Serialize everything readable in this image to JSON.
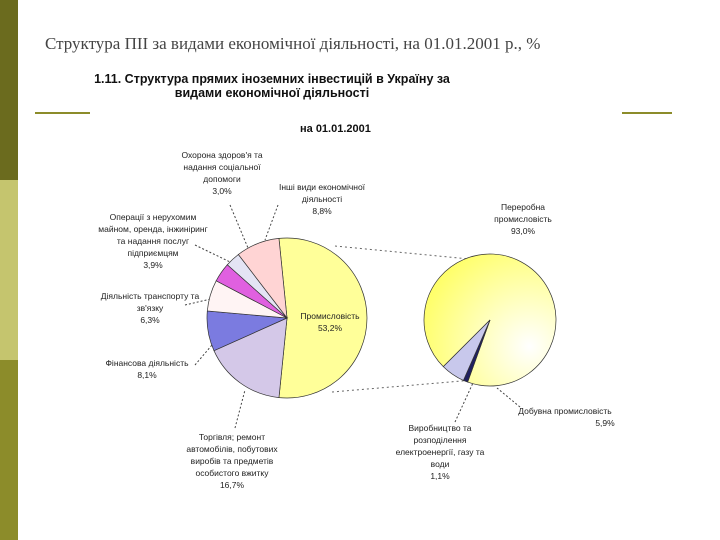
{
  "slide_title": "Структура ПІІ за видами економічної діяльності, на 01.01.2001 р., %",
  "chart_data": {
    "type": "pie-of-pie",
    "title": "1.11. Структура прямих іноземних інвестицій в Україну за видами економічної діяльності",
    "subtitle": "на 01.01.2001",
    "categories": [
      "Промисловість",
      "Торгівля; ремонт автомобілів, побутових виробів та предметів особистого вжитку",
      "Фінансова діяльність",
      "Діяльність транспорту та зв'язку",
      "Операції з нерухомим майном, оренда, інжиніринг та надання послуг підприємцям",
      "Охорона здоров'я та надання соціальної допомоги",
      "Інші види економічної діяльності"
    ],
    "values": [
      53.2,
      16.7,
      8.1,
      6.3,
      3.9,
      3.0,
      8.8
    ],
    "value_labels": [
      "53,2%",
      "16,7%",
      "8,1%",
      "6,3%",
      "3,9%",
      "3,0%",
      "8,8%"
    ],
    "colors": [
      "#ffff99",
      "#d4c8e8",
      "#7b7be0",
      "#fff4f4",
      "#e060e0",
      "#e4e4f4",
      "#ffd4d4"
    ],
    "secondary": {
      "categories": [
        "Переробна промисловість",
        "Виробництво та розподілення електроенергії, газу та води",
        "Добувна промисловість"
      ],
      "values": [
        93.0,
        1.1,
        5.9
      ],
      "value_labels": [
        "93,0%",
        "1,1%",
        "5,9%"
      ],
      "colors": [
        "#ffff88",
        "#202060",
        "#c8c8ec"
      ]
    }
  }
}
